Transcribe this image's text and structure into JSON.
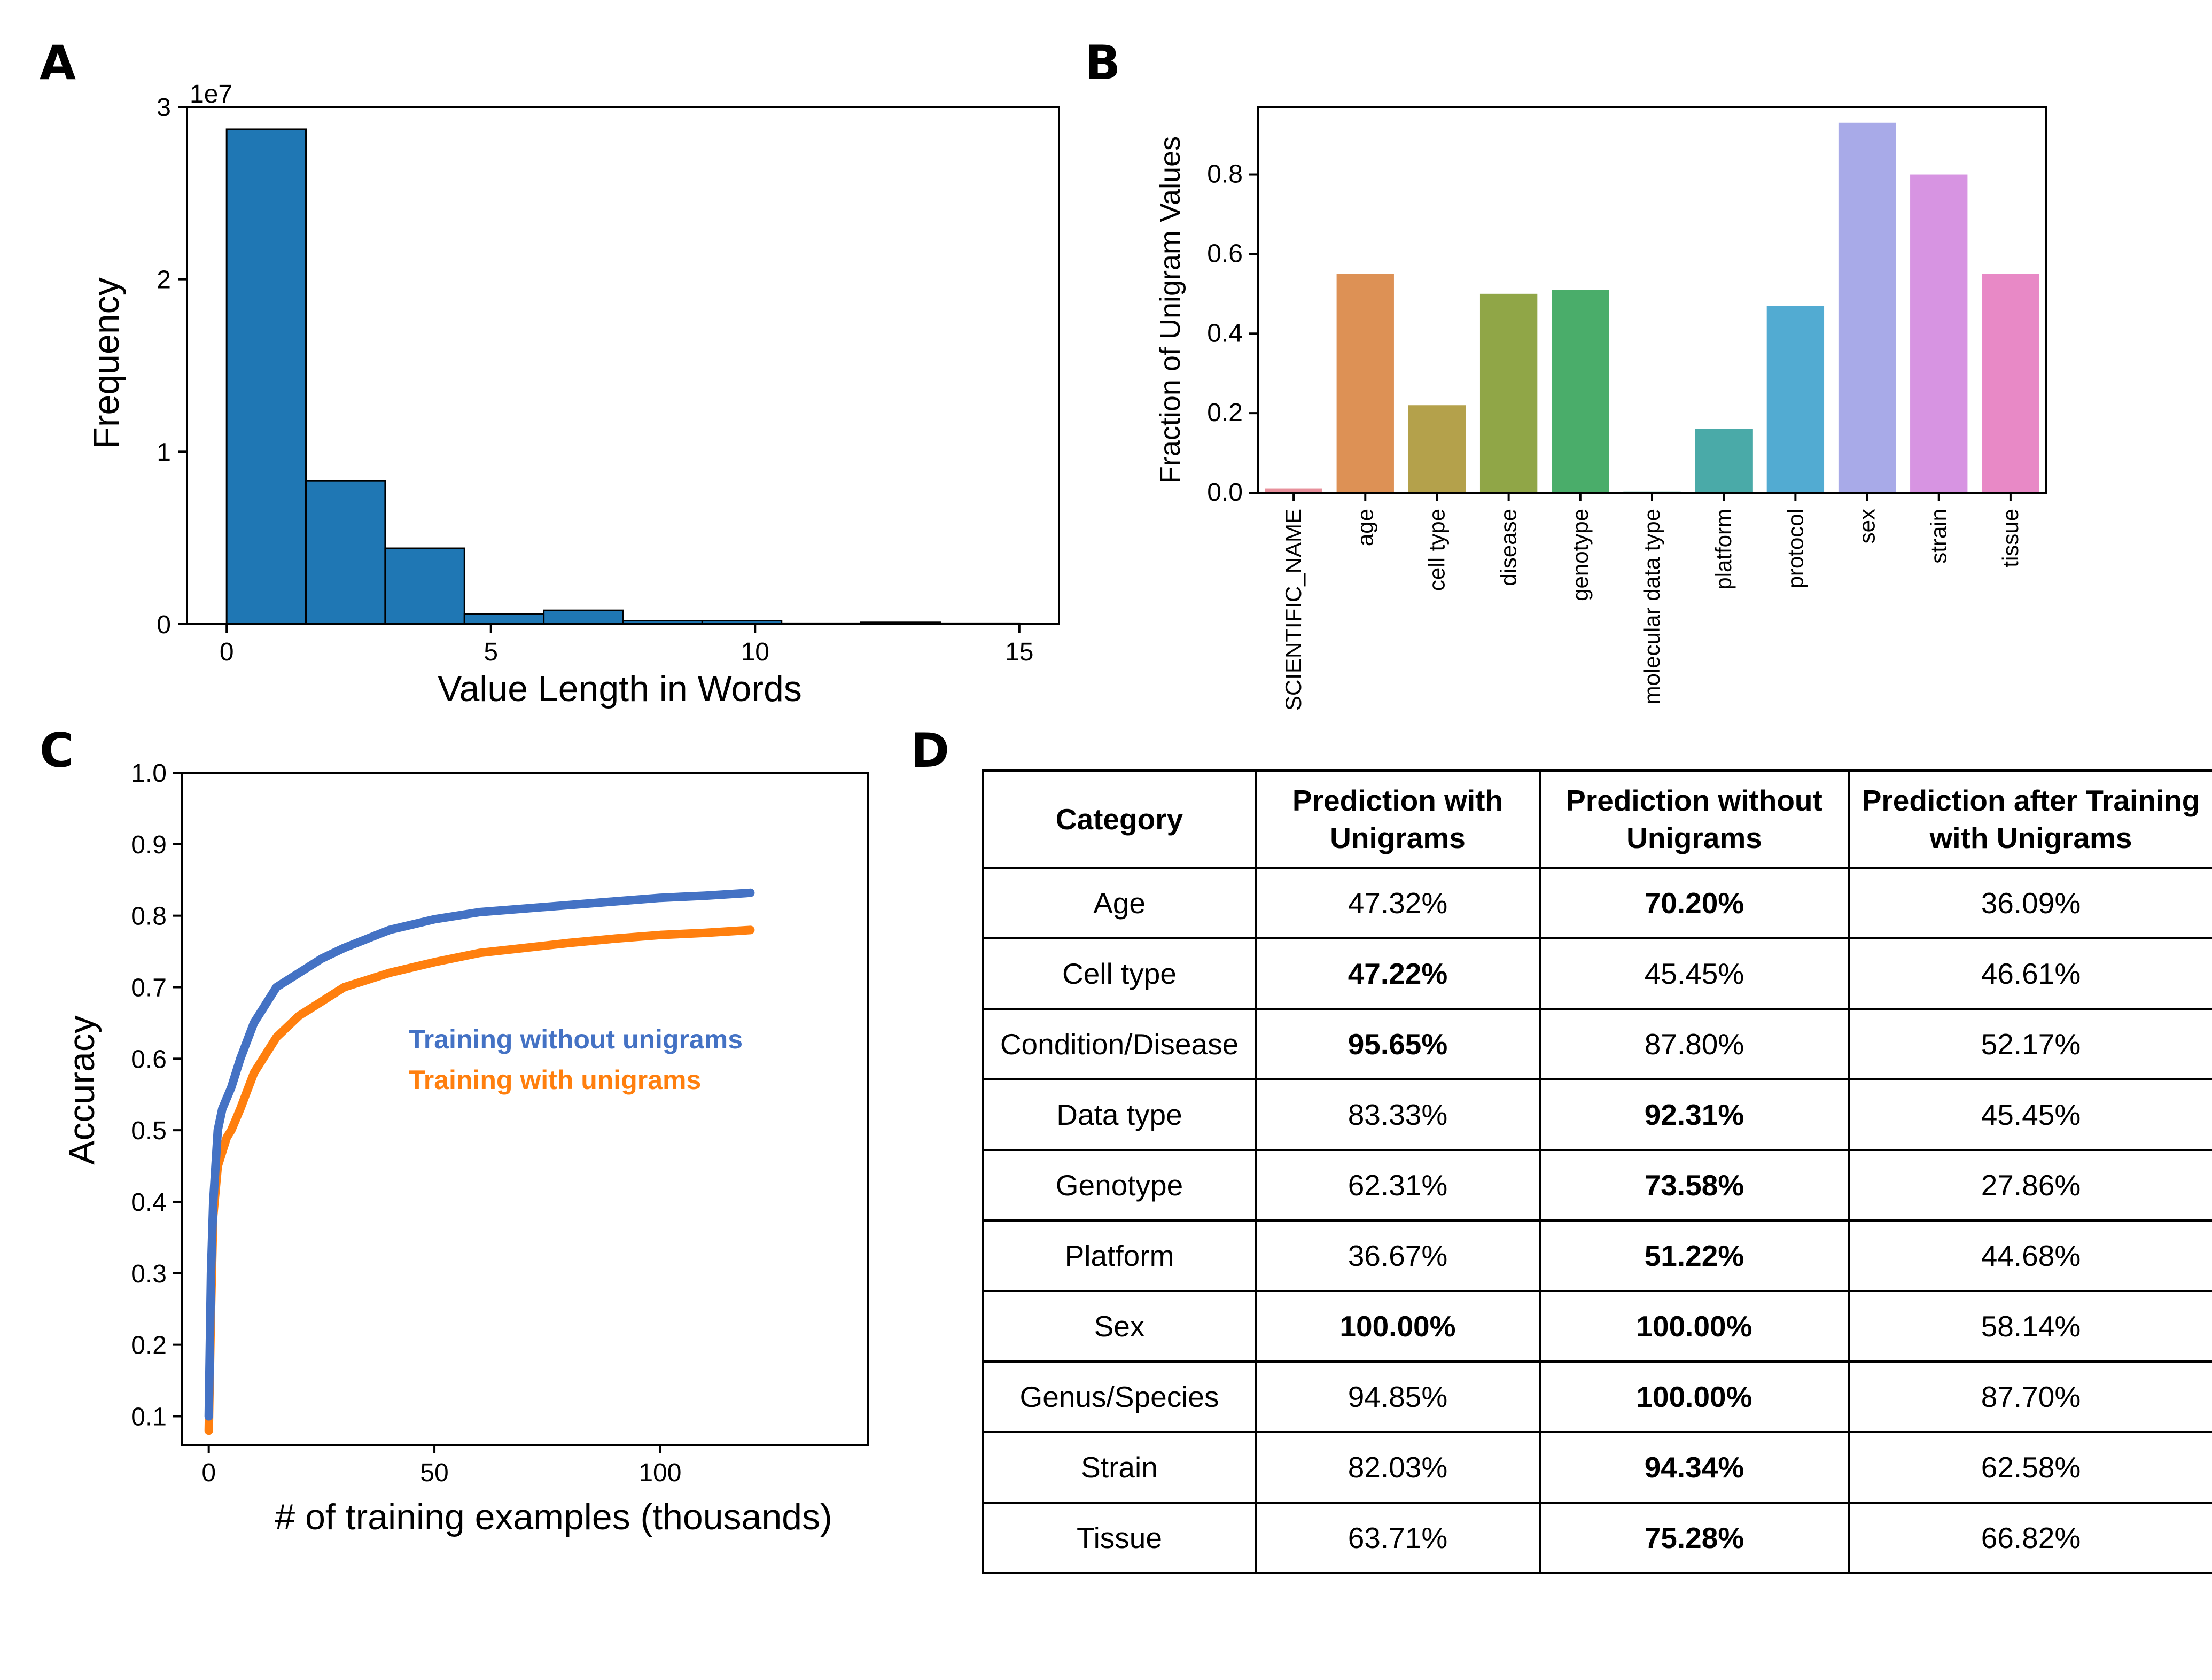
{
  "panels": {
    "a": "A",
    "b": "B",
    "c": "C",
    "d": "D"
  },
  "chart_data": [
    {
      "panel": "A",
      "type": "bar",
      "subtype": "histogram",
      "bin_edges": [
        0,
        1.5,
        3,
        4.5,
        6,
        7.5,
        9,
        10.5,
        12,
        13.5,
        15
      ],
      "values": [
        28.7,
        8.3,
        4.4,
        0.6,
        0.8,
        0.2,
        0.2,
        0.05,
        0.1,
        0.05
      ],
      "value_multiplier": "1e7",
      "scale_label": "1e7",
      "xlabel": "Value Length in Words",
      "ylabel": "Frequency",
      "xticks": [
        0,
        5,
        10,
        15
      ],
      "yticks": [
        0,
        1,
        2,
        3
      ],
      "xlim": [
        -0.75,
        15.75
      ],
      "ylim": [
        0,
        3.0
      ],
      "color": "#1f77b4",
      "grid": false
    },
    {
      "panel": "B",
      "type": "bar",
      "categories": [
        "SCIENTIFIC_NAME",
        "age",
        "cell type",
        "disease",
        "genotype",
        "molecular data type",
        "platform",
        "protocol",
        "sex",
        "strain",
        "tissue"
      ],
      "values": [
        0.01,
        0.55,
        0.22,
        0.5,
        0.51,
        0.003,
        0.16,
        0.47,
        0.93,
        0.8,
        0.55
      ],
      "colors": [
        "#e8909c",
        "#dd9155",
        "#b4a14b",
        "#90a647",
        "#4aad6a",
        "#4aab8f",
        "#4aaaa8",
        "#52abd2",
        "#a8aae8",
        "#d794e2",
        "#e889c6"
      ],
      "xlabel": "",
      "ylabel": "Fraction of Unigram Values",
      "yticks": [
        0.0,
        0.2,
        0.4,
        0.6,
        0.8
      ],
      "ylim": [
        0,
        0.97
      ],
      "grid": false
    },
    {
      "panel": "C",
      "type": "line",
      "xlabel": "# of training examples (thousands)",
      "ylabel": "Accuracy",
      "xticks": [
        0,
        50,
        100
      ],
      "yticks": [
        0.1,
        0.2,
        0.3,
        0.4,
        0.5,
        0.6,
        0.7,
        0.8,
        0.9,
        1.0
      ],
      "xlim": [
        -6,
        146
      ],
      "ylim": [
        0.06,
        1.0
      ],
      "legend_location": "center",
      "series": [
        {
          "name": "Training without unigrams",
          "color": "#4472c4",
          "x": [
            0,
            0.5,
            1,
            2,
            3,
            4,
            5,
            7,
            10,
            15,
            20,
            25,
            30,
            40,
            50,
            60,
            70,
            80,
            90,
            100,
            110,
            120
          ],
          "y": [
            0.1,
            0.3,
            0.4,
            0.5,
            0.53,
            0.545,
            0.56,
            0.6,
            0.65,
            0.7,
            0.72,
            0.74,
            0.755,
            0.78,
            0.795,
            0.805,
            0.81,
            0.815,
            0.82,
            0.825,
            0.828,
            0.832
          ]
        },
        {
          "name": "Training with unigrams",
          "color": "#ff7f0e",
          "x": [
            0,
            0.5,
            1,
            2,
            3,
            4,
            5,
            7,
            10,
            15,
            20,
            25,
            30,
            40,
            50,
            60,
            70,
            80,
            90,
            100,
            110,
            120
          ],
          "y": [
            0.08,
            0.25,
            0.38,
            0.45,
            0.47,
            0.49,
            0.5,
            0.53,
            0.58,
            0.63,
            0.66,
            0.68,
            0.7,
            0.72,
            0.735,
            0.748,
            0.755,
            0.762,
            0.768,
            0.773,
            0.776,
            0.78
          ]
        }
      ]
    },
    {
      "panel": "D",
      "type": "table",
      "columns": [
        "Category",
        "Prediction with Unigrams",
        "Prediction without Unigrams",
        "Prediction after Training with Unigrams"
      ],
      "rows": [
        {
          "category": "Age",
          "with": "47.32%",
          "without": "70.20%",
          "after": "36.09%",
          "best": "without"
        },
        {
          "category": "Cell type",
          "with": "47.22%",
          "without": "45.45%",
          "after": "46.61%",
          "best": "with"
        },
        {
          "category": "Condition/Disease",
          "with": "95.65%",
          "without": "87.80%",
          "after": "52.17%",
          "best": "with"
        },
        {
          "category": "Data type",
          "with": "83.33%",
          "without": "92.31%",
          "after": "45.45%",
          "best": "without"
        },
        {
          "category": "Genotype",
          "with": "62.31%",
          "without": "73.58%",
          "after": "27.86%",
          "best": "without"
        },
        {
          "category": "Platform",
          "with": "36.67%",
          "without": "51.22%",
          "after": "44.68%",
          "best": "without"
        },
        {
          "category": "Sex",
          "with": "100.00%",
          "without": "100.00%",
          "after": "58.14%",
          "best": "both"
        },
        {
          "category": "Genus/Species",
          "with": "94.85%",
          "without": "100.00%",
          "after": "87.70%",
          "best": "without"
        },
        {
          "category": "Strain",
          "with": "82.03%",
          "without": "94.34%",
          "after": "62.58%",
          "best": "without"
        },
        {
          "category": "Tissue",
          "with": "63.71%",
          "without": "75.28%",
          "after": "66.82%",
          "best": "without"
        }
      ]
    }
  ]
}
